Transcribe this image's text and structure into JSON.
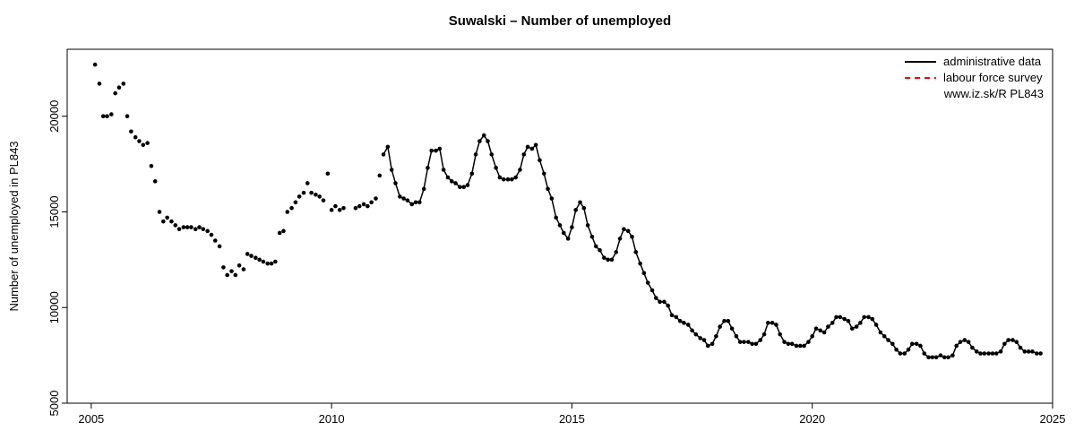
{
  "chart": {
    "type": "line+scatter",
    "title": "Suwalski – Number of unemployed",
    "title_fontsize": 15,
    "ylabel": "Number of unemployed in PL843",
    "label_fontsize": 13,
    "tick_fontsize": 13,
    "background_color": "#ffffff",
    "plot_box_color": "#000000",
    "xlim": [
      2004.5,
      2025.0
    ],
    "ylim": [
      5000,
      23500
    ],
    "xticks": [
      2005,
      2010,
      2015,
      2020,
      2025
    ],
    "yticks": [
      5000,
      10000,
      15000,
      20000
    ],
    "marker_radius": 2.3,
    "marker_color": "#000000",
    "line_color": "#000000",
    "line_width": 1.5,
    "line_start_index": 70,
    "legend": {
      "items": [
        {
          "label": "administrative data",
          "color": "#000000",
          "dash": "solid",
          "width": 2
        },
        {
          "label": "labour force survey",
          "color": "#ff0000",
          "dash": "6,5",
          "width": 2
        }
      ],
      "caption": "www.iz.sk/R PL843",
      "fontsize": 13
    },
    "series": {
      "x": [
        2005.08,
        2005.17,
        2005.25,
        2005.33,
        2005.42,
        2005.5,
        2005.58,
        2005.67,
        2005.75,
        2005.83,
        2005.92,
        2006.0,
        2006.08,
        2006.17,
        2006.25,
        2006.33,
        2006.42,
        2006.5,
        2006.58,
        2006.67,
        2006.75,
        2006.83,
        2006.92,
        2007.0,
        2007.08,
        2007.17,
        2007.25,
        2007.33,
        2007.42,
        2007.5,
        2007.58,
        2007.67,
        2007.75,
        2007.83,
        2007.92,
        2008.0,
        2008.08,
        2008.17,
        2008.25,
        2008.33,
        2008.42,
        2008.5,
        2008.58,
        2008.67,
        2008.75,
        2008.83,
        2008.92,
        2009.0,
        2009.08,
        2009.17,
        2009.25,
        2009.33,
        2009.42,
        2009.5,
        2009.58,
        2009.67,
        2009.75,
        2009.83,
        2009.92,
        2010.0,
        2010.08,
        2010.17,
        2010.25,
        2010.5,
        2010.58,
        2010.67,
        2010.75,
        2010.83,
        2010.92,
        2011.0,
        2011.08,
        2011.17,
        2011.25,
        2011.33,
        2011.42,
        2011.5,
        2011.58,
        2011.67,
        2011.75,
        2011.83,
        2011.92,
        2012.0,
        2012.08,
        2012.17,
        2012.25,
        2012.33,
        2012.42,
        2012.5,
        2012.58,
        2012.67,
        2012.75,
        2012.83,
        2012.92,
        2013.0,
        2013.08,
        2013.17,
        2013.25,
        2013.33,
        2013.42,
        2013.5,
        2013.58,
        2013.67,
        2013.75,
        2013.83,
        2013.92,
        2014.0,
        2014.08,
        2014.17,
        2014.25,
        2014.33,
        2014.42,
        2014.5,
        2014.58,
        2014.67,
        2014.75,
        2014.83,
        2014.92,
        2015.0,
        2015.08,
        2015.17,
        2015.25,
        2015.33,
        2015.42,
        2015.5,
        2015.58,
        2015.67,
        2015.75,
        2015.83,
        2015.92,
        2016.0,
        2016.08,
        2016.17,
        2016.25,
        2016.33,
        2016.42,
        2016.5,
        2016.58,
        2016.67,
        2016.75,
        2016.83,
        2016.92,
        2017.0,
        2017.08,
        2017.17,
        2017.25,
        2017.33,
        2017.42,
        2017.5,
        2017.58,
        2017.67,
        2017.75,
        2017.83,
        2017.92,
        2018.0,
        2018.08,
        2018.17,
        2018.25,
        2018.33,
        2018.42,
        2018.5,
        2018.58,
        2018.67,
        2018.75,
        2018.83,
        2018.92,
        2019.0,
        2019.08,
        2019.17,
        2019.25,
        2019.33,
        2019.42,
        2019.5,
        2019.58,
        2019.67,
        2019.75,
        2019.83,
        2019.92,
        2020.0,
        2020.08,
        2020.17,
        2020.25,
        2020.33,
        2020.42,
        2020.5,
        2020.58,
        2020.67,
        2020.75,
        2020.83,
        2020.92,
        2021.0,
        2021.08,
        2021.17,
        2021.25,
        2021.33,
        2021.42,
        2021.5,
        2021.58,
        2021.67,
        2021.75,
        2021.83,
        2021.92,
        2022.0,
        2022.08,
        2022.17,
        2022.25,
        2022.33,
        2022.42,
        2022.5,
        2022.58,
        2022.67,
        2022.75,
        2022.83,
        2022.92,
        2023.0,
        2023.08,
        2023.17,
        2023.25,
        2023.33,
        2023.42,
        2023.5,
        2023.58,
        2023.67,
        2023.75,
        2023.83,
        2023.92,
        2024.0,
        2024.08,
        2024.17,
        2024.25,
        2024.33,
        2024.42,
        2024.5,
        2024.58,
        2024.67,
        2024.75
      ],
      "y": [
        22700,
        21700,
        20000,
        20000,
        20100,
        21200,
        21500,
        21700,
        20000,
        19200,
        18900,
        18700,
        18500,
        18600,
        17400,
        16600,
        15000,
        14500,
        14700,
        14500,
        14300,
        14100,
        14200,
        14200,
        14200,
        14100,
        14200,
        14100,
        14000,
        13800,
        13500,
        13200,
        12100,
        11700,
        11900,
        11700,
        12200,
        12000,
        12800,
        12700,
        12600,
        12500,
        12400,
        12300,
        12300,
        12400,
        13900,
        14000,
        15000,
        15200,
        15500,
        15800,
        16000,
        16500,
        16000,
        15900,
        15800,
        15600,
        17000,
        15100,
        15300,
        15100,
        15200,
        15200,
        15300,
        15400,
        15300,
        15500,
        15700,
        16900,
        18000,
        18400,
        17200,
        16500,
        15800,
        15700,
        15600,
        15400,
        15500,
        15500,
        16200,
        17300,
        18200,
        18200,
        18300,
        17200,
        16800,
        16600,
        16500,
        16300,
        16300,
        16400,
        17000,
        18000,
        18700,
        19000,
        18700,
        18000,
        17300,
        16800,
        16700,
        16700,
        16700,
        16800,
        17200,
        18000,
        18400,
        18300,
        18500,
        17700,
        17000,
        16200,
        15700,
        14700,
        14300,
        13900,
        13600,
        14200,
        15100,
        15500,
        15200,
        14300,
        13700,
        13200,
        13000,
        12600,
        12500,
        12500,
        12900,
        13600,
        14100,
        14000,
        13700,
        12900,
        12300,
        11800,
        11300,
        10900,
        10500,
        10300,
        10300,
        10100,
        9600,
        9500,
        9300,
        9200,
        9100,
        8800,
        8600,
        8400,
        8300,
        8000,
        8100,
        8500,
        9000,
        9300,
        9300,
        8900,
        8500,
        8200,
        8200,
        8200,
        8100,
        8100,
        8300,
        8600,
        9200,
        9200,
        9100,
        8600,
        8200,
        8100,
        8100,
        8000,
        8000,
        8000,
        8200,
        8500,
        8900,
        8800,
        8700,
        9000,
        9200,
        9500,
        9500,
        9400,
        9300,
        8900,
        9000,
        9200,
        9500,
        9500,
        9400,
        9100,
        8700,
        8500,
        8300,
        8100,
        7800,
        7600,
        7600,
        7800,
        8100,
        8100,
        8000,
        7600,
        7400,
        7400,
        7400,
        7500,
        7400,
        7400,
        7500,
        8000,
        8200,
        8300,
        8200,
        7900,
        7700,
        7600,
        7600,
        7600,
        7600,
        7600,
        7700,
        8100,
        8300,
        8300,
        8200,
        7900,
        7700,
        7700,
        7700,
        7600,
        7600
      ]
    }
  }
}
